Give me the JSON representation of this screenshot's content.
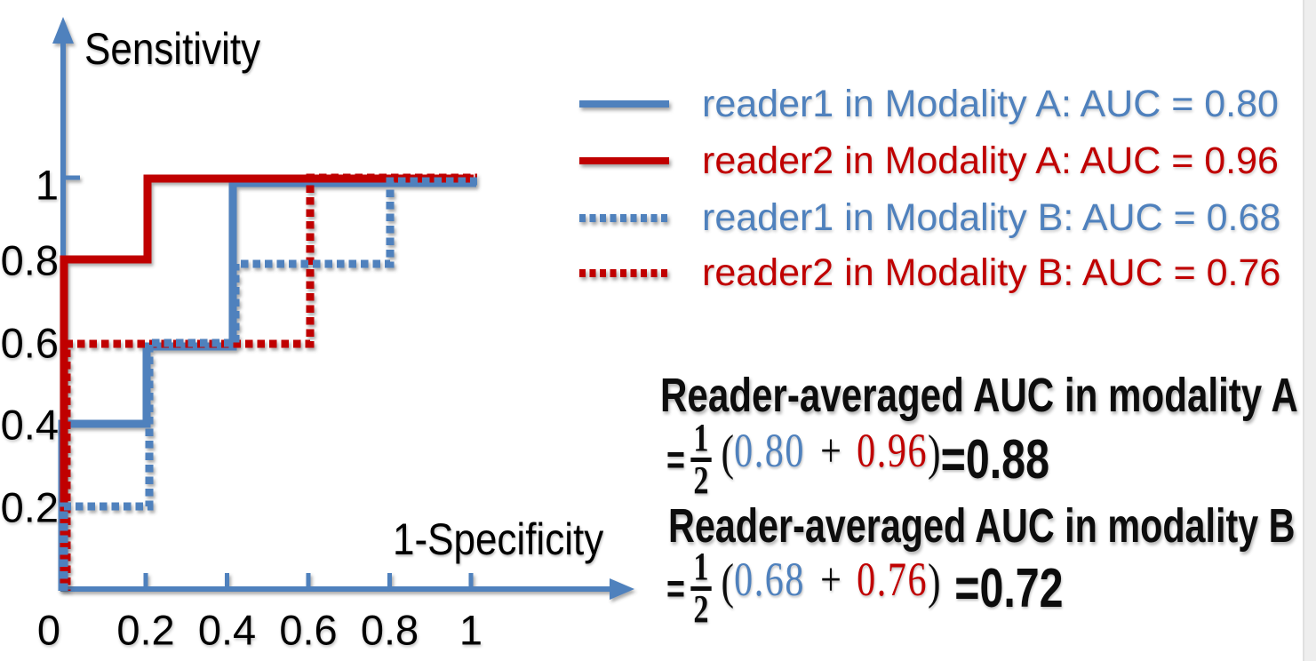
{
  "figure": {
    "background": "#ffffff",
    "accent_blue": "#4f81bd",
    "accent_red": "#c00000"
  },
  "chart_data": {
    "type": "line",
    "subtype": "roc-step-curves",
    "title": "",
    "xlabel": "1-Specificity",
    "ylabel": "Sensitivity",
    "xlim": [
      0,
      1
    ],
    "ylim": [
      0,
      1
    ],
    "grid": false,
    "legend_position": "upper-right-outside",
    "x_ticks": [
      0,
      0.2,
      0.4,
      0.6,
      0.8,
      1
    ],
    "x_tick_labels": [
      "0",
      "0.2",
      "0.4",
      "0.6",
      "0.8",
      "1"
    ],
    "y_ticks": [
      0.2,
      0.4,
      0.6,
      0.8,
      1
    ],
    "y_tick_labels": [
      "0.2",
      "0.4",
      "0.6",
      "0.8",
      "1"
    ],
    "series": [
      {
        "name": "reader1 in Modality A",
        "color": "#4f81bd",
        "style": "solid",
        "auc": 0.8,
        "points": [
          [
            0,
            0
          ],
          [
            0,
            0.4
          ],
          [
            0.2,
            0.4
          ],
          [
            0.2,
            0.6
          ],
          [
            0.4,
            0.6
          ],
          [
            0.4,
            1
          ],
          [
            1,
            1
          ]
        ]
      },
      {
        "name": "reader2 in Modality A",
        "color": "#c00000",
        "style": "solid",
        "auc": 0.96,
        "points": [
          [
            0,
            0
          ],
          [
            0,
            0.8
          ],
          [
            0.2,
            0.8
          ],
          [
            0.2,
            1
          ],
          [
            1,
            1
          ]
        ]
      },
      {
        "name": "reader1 in Modality B",
        "color": "#4f81bd",
        "style": "dotted",
        "auc": 0.68,
        "points": [
          [
            0,
            0
          ],
          [
            0,
            0.2
          ],
          [
            0.2,
            0.2
          ],
          [
            0.2,
            0.6
          ],
          [
            0.4,
            0.6
          ],
          [
            0.4,
            0.8
          ],
          [
            0.8,
            0.8
          ],
          [
            0.8,
            1
          ],
          [
            1,
            1
          ]
        ]
      },
      {
        "name": "reader2 in Modality B",
        "color": "#c00000",
        "style": "dotted",
        "auc": 0.76,
        "points": [
          [
            0,
            0
          ],
          [
            0,
            0.6
          ],
          [
            0.6,
            0.6
          ],
          [
            0.6,
            1
          ],
          [
            1,
            1
          ]
        ]
      }
    ]
  },
  "legend": {
    "items": [
      {
        "label": "reader1 in Modality A: AUC = 0.80",
        "color": "#4f81bd",
        "style": "solid"
      },
      {
        "label": "reader2 in Modality A: AUC = 0.96",
        "color": "#c00000",
        "style": "solid"
      },
      {
        "label": "reader1 in Modality B: AUC = 0.68",
        "color": "#4f81bd",
        "style": "dotted"
      },
      {
        "label": "reader2 in Modality B: AUC = 0.76",
        "color": "#c00000",
        "style": "dotted"
      }
    ]
  },
  "annotation": {
    "title_a": "Reader-averaged AUC in modality A",
    "eq_a": {
      "eq": "=",
      "num": "1",
      "den": "2",
      "open": "(",
      "v1": "0.80",
      "plus": "+",
      "v2": "0.96",
      "close": ")",
      "res": "=0.88"
    },
    "title_b": "Reader-averaged AUC in modality B",
    "eq_b": {
      "eq": "=",
      "num": "1",
      "den": "2",
      "open": "(",
      "v1": "0.68",
      "plus": "+",
      "v2": "0.76",
      "close": ")",
      "res": "=0.72"
    }
  }
}
